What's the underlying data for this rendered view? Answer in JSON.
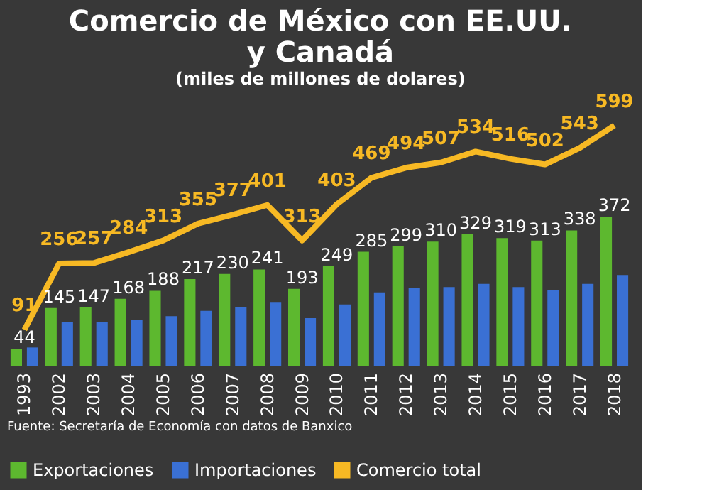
{
  "chart_data": {
    "type": "bar",
    "title": [
      "Comercio de  México con EE.UU.",
      "y Canadá"
    ],
    "subtitle": "(miles de millones de dolares)",
    "categories": [
      "1993",
      "2002",
      "2003",
      "2004",
      "2005",
      "2006",
      "2007",
      "2008",
      "2009",
      "2010",
      "2011",
      "2012",
      "2013",
      "2014",
      "2015",
      "2016",
      "2017",
      "2018"
    ],
    "series": [
      {
        "name": "Exportaciones",
        "color": "#5db82f",
        "values": [
          44,
          145,
          147,
          168,
          188,
          217,
          230,
          241,
          193,
          249,
          285,
          299,
          310,
          329,
          319,
          313,
          338,
          372
        ],
        "value_labels": [
          "44",
          "145",
          "147",
          "168",
          "188",
          "217",
          "230",
          "241",
          "193",
          "249",
          "285",
          "299",
          "310",
          "329",
          "319",
          "313",
          "338",
          "372"
        ]
      },
      {
        "name": "Importaciones",
        "color": "#3a70d4",
        "values": [
          47,
          111,
          110,
          116,
          125,
          138,
          147,
          160,
          120,
          154,
          184,
          195,
          197,
          205,
          197,
          189,
          205,
          227
        ]
      },
      {
        "name": "Comercio total",
        "type": "line",
        "color": "#f7b924",
        "values": [
          91,
          256,
          257,
          284,
          313,
          355,
          377,
          401,
          313,
          403,
          469,
          494,
          507,
          534,
          516,
          502,
          543,
          599
        ],
        "value_labels": [
          "91",
          "256",
          "257",
          "284",
          "313",
          "355",
          "377",
          "401",
          "313",
          "403",
          "469",
          "494",
          "507",
          "534",
          "516",
          "502",
          "543",
          "599"
        ]
      }
    ],
    "legend": "bottom",
    "tick_labels": "x",
    "annotations": [
      "Fuente: Secretaría de Economía con datos de Banxico"
    ]
  }
}
